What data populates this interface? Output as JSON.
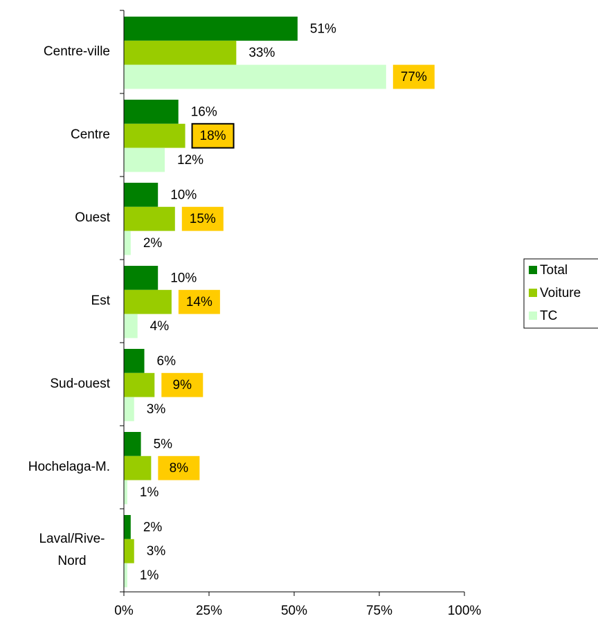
{
  "chart_data": {
    "type": "bar",
    "orientation": "horizontal",
    "categories": [
      "Centre-ville",
      "Centre",
      "Ouest",
      "Est",
      "Sud-ouest",
      "Hochelaga-M.",
      "Laval/Rive-Nord"
    ],
    "series": [
      {
        "name": "Total",
        "color": "#008000",
        "values": [
          51,
          16,
          10,
          10,
          6,
          5,
          2
        ],
        "value_labels": [
          "51%",
          "16%",
          "10%",
          "10%",
          "6%",
          "5%",
          "2%"
        ],
        "label_box": [
          false,
          false,
          false,
          false,
          false,
          false,
          false
        ],
        "label_outline": [
          false,
          false,
          false,
          false,
          false,
          false,
          false
        ]
      },
      {
        "name": "Voiture",
        "color": "#99cc00",
        "values": [
          33,
          18,
          15,
          14,
          9,
          8,
          3
        ],
        "value_labels": [
          "33%",
          "18%",
          "15%",
          "14%",
          "9%",
          "8%",
          "3%"
        ],
        "label_box": [
          false,
          true,
          true,
          true,
          true,
          true,
          false
        ],
        "label_outline": [
          false,
          true,
          false,
          false,
          false,
          false,
          false
        ]
      },
      {
        "name": "TC",
        "color": "#ccffcc",
        "values": [
          77,
          12,
          2,
          4,
          3,
          1,
          1
        ],
        "value_labels": [
          "77%",
          "12%",
          "2%",
          "4%",
          "3%",
          "1%",
          "1%"
        ],
        "label_box": [
          true,
          false,
          false,
          false,
          false,
          false,
          false
        ],
        "label_outline": [
          false,
          false,
          false,
          false,
          false,
          false,
          false
        ]
      }
    ],
    "label_box_color": "#ffcc00",
    "xlim": [
      0,
      100
    ],
    "xticks": [
      {
        "value": 0,
        "label": "0%"
      },
      {
        "value": 25,
        "label": "25%"
      },
      {
        "value": 50,
        "label": "50%"
      },
      {
        "value": 75,
        "label": "75%"
      },
      {
        "value": 100,
        "label": "100%"
      }
    ],
    "grid": false,
    "legend": "right"
  }
}
